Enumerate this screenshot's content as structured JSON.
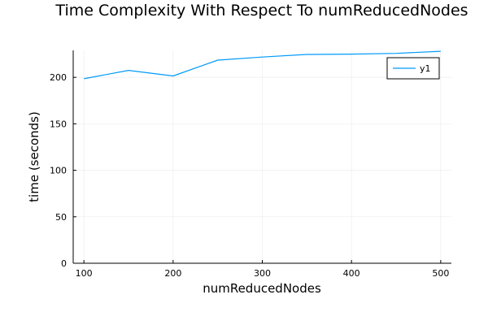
{
  "chart_data": {
    "type": "line",
    "title": "Time Complexity With Respect To numReducedNodes",
    "xlabel": "numReducedNodes",
    "ylabel": "time (seconds)",
    "x": [
      100,
      150,
      200,
      250,
      300,
      350,
      400,
      450,
      500
    ],
    "series": [
      {
        "name": "y1",
        "color": "#009af9",
        "values": [
          198.5,
          207.5,
          201.5,
          218.5,
          221.8,
          224.6,
          225.0,
          225.8,
          228.0
        ]
      }
    ],
    "xlim": [
      88,
      512
    ],
    "ylim": [
      0,
      229
    ],
    "xticks": [
      100,
      200,
      300,
      400,
      500
    ],
    "yticks": [
      0,
      50,
      100,
      150,
      200
    ],
    "grid": true,
    "legend_position": "top-right"
  }
}
